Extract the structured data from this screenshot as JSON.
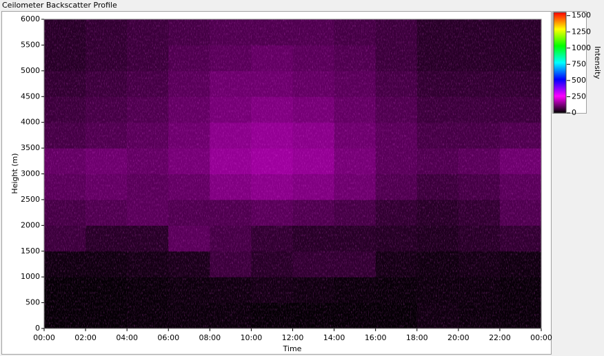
{
  "chart_data": {
    "type": "heatmap",
    "title": "Ceilometer Backscatter Profile",
    "x_label": "Time",
    "y_label": "Height (m)",
    "colorbar_label": "Intensity",
    "x_bins": [
      0,
      2,
      4,
      6,
      8,
      10,
      12,
      14,
      16,
      18,
      20,
      22,
      24
    ],
    "y_bins": [
      0,
      500,
      1000,
      1500,
      2000,
      2500,
      3000,
      3500,
      4000,
      4500,
      5000,
      5500,
      6000
    ],
    "z": [
      [
        5,
        5,
        8,
        10,
        10,
        5,
        5,
        5,
        5,
        15,
        10,
        8
      ],
      [
        5,
        5,
        8,
        12,
        15,
        20,
        15,
        10,
        8,
        12,
        12,
        8
      ],
      [
        15,
        15,
        20,
        25,
        60,
        40,
        50,
        50,
        20,
        15,
        20,
        15
      ],
      [
        60,
        40,
        40,
        90,
        70,
        50,
        40,
        40,
        35,
        30,
        40,
        50
      ],
      [
        70,
        80,
        90,
        80,
        80,
        90,
        80,
        70,
        50,
        40,
        50,
        80
      ],
      [
        90,
        100,
        90,
        100,
        130,
        140,
        130,
        110,
        80,
        60,
        70,
        90
      ],
      [
        100,
        110,
        100,
        120,
        150,
        160,
        150,
        120,
        90,
        80,
        90,
        110
      ],
      [
        70,
        80,
        90,
        110,
        140,
        150,
        140,
        110,
        90,
        70,
        70,
        80
      ],
      [
        60,
        70,
        80,
        100,
        120,
        130,
        120,
        100,
        80,
        60,
        60,
        60
      ],
      [
        50,
        60,
        70,
        90,
        110,
        110,
        100,
        90,
        70,
        50,
        50,
        50
      ],
      [
        40,
        50,
        60,
        80,
        90,
        100,
        90,
        80,
        60,
        40,
        40,
        40
      ],
      [
        40,
        50,
        60,
        70,
        80,
        80,
        80,
        70,
        60,
        40,
        40,
        40
      ]
    ],
    "xlim": [
      0,
      24
    ],
    "xticks": [
      {
        "value": 0,
        "label": "00:00"
      },
      {
        "value": 2,
        "label": "02:00"
      },
      {
        "value": 4,
        "label": "04:00"
      },
      {
        "value": 6,
        "label": "06:00"
      },
      {
        "value": 8,
        "label": "08:00"
      },
      {
        "value": 10,
        "label": "10:00"
      },
      {
        "value": 12,
        "label": "12:00"
      },
      {
        "value": 14,
        "label": "14:00"
      },
      {
        "value": 16,
        "label": "16:00"
      },
      {
        "value": 18,
        "label": "18:00"
      },
      {
        "value": 20,
        "label": "20:00"
      },
      {
        "value": 22,
        "label": "22:00"
      },
      {
        "value": 24,
        "label": "00:00"
      }
    ],
    "ylim": [
      0,
      6000
    ],
    "yticks": [
      0,
      500,
      1000,
      1500,
      2000,
      2500,
      3000,
      3500,
      4000,
      4500,
      5000,
      5500,
      6000
    ],
    "zlim": [
      0,
      1550
    ],
    "zticks": [
      0,
      250,
      500,
      750,
      1000,
      1250,
      1500
    ],
    "colormap": [
      "#000000",
      "#ff00ff",
      "#0000ff",
      "#00ffff",
      "#00ff00",
      "#ffff00",
      "#ff0000"
    ]
  }
}
